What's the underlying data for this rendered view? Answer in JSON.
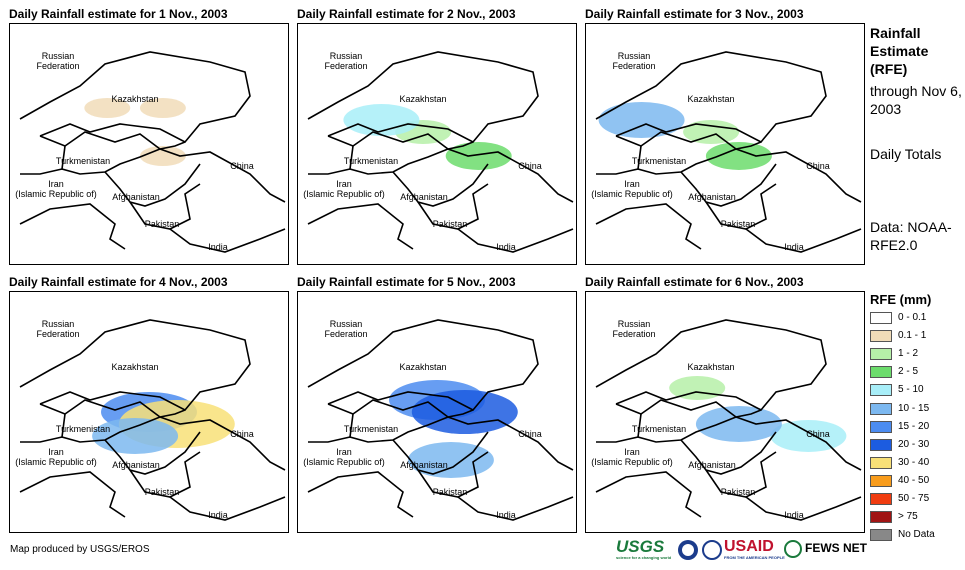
{
  "panels": [
    {
      "title": "Daily Rainfall estimate for 1 Nov., 2003",
      "rain": [
        [
          0.55,
          0.55,
          1
        ],
        [
          0.35,
          0.35,
          1
        ],
        [
          0.55,
          0.35,
          1
        ]
      ]
    },
    {
      "title": "Daily Rainfall estimate for 2 Nov., 2003",
      "rain": [
        [
          0.45,
          0.45,
          2
        ],
        [
          0.65,
          0.55,
          3
        ],
        [
          0.3,
          0.4,
          4
        ]
      ]
    },
    {
      "title": "Daily Rainfall estimate for 3 Nov., 2003",
      "rain": [
        [
          0.45,
          0.45,
          2
        ],
        [
          0.55,
          0.55,
          3
        ],
        [
          0.2,
          0.4,
          5
        ]
      ]
    },
    {
      "title": "Daily Rainfall estimate for 4 Nov., 2003",
      "rain": [
        [
          0.5,
          0.5,
          6
        ],
        [
          0.6,
          0.55,
          8
        ],
        [
          0.45,
          0.6,
          5
        ]
      ]
    },
    {
      "title": "Daily Rainfall estimate for 5 Nov., 2003",
      "rain": [
        [
          0.5,
          0.45,
          6
        ],
        [
          0.6,
          0.5,
          7
        ],
        [
          0.55,
          0.7,
          5
        ]
      ]
    },
    {
      "title": "Daily Rainfall estimate for 6 Nov., 2003",
      "rain": [
        [
          0.8,
          0.6,
          4
        ],
        [
          0.55,
          0.55,
          5
        ],
        [
          0.4,
          0.4,
          2
        ]
      ]
    }
  ],
  "map_labels": {
    "russia": "Russian\nFederation",
    "kazakhstan": "Kazakhstan",
    "turkmenistan": "Turkmenistan",
    "china": "China",
    "iran": "Iran\n(Islamic Republic of)",
    "afghanistan": "Afghanistan",
    "pakistan": "Pakistan",
    "india": "India"
  },
  "side_text": {
    "heading": "Rainfall Estimate (RFE)",
    "through": "through Nov 6, 2003",
    "totals": "Daily Totals",
    "data": "Data: NOAA-RFE2.0"
  },
  "legend": {
    "title": "RFE (mm)",
    "items": [
      {
        "label": "0 - 0.1",
        "color": "#ffffff"
      },
      {
        "label": "0.1 - 1",
        "color": "#f1dcb8"
      },
      {
        "label": "1 - 2",
        "color": "#b6f0a8"
      },
      {
        "label": "2 - 5",
        "color": "#6cdc6c"
      },
      {
        "label": "5 - 10",
        "color": "#a8eef8"
      },
      {
        "label": "10 - 15",
        "color": "#7cb8f0"
      },
      {
        "label": "15 - 20",
        "color": "#4c8cf0"
      },
      {
        "label": "20 - 30",
        "color": "#1c5ce0"
      },
      {
        "label": "30 - 40",
        "color": "#f8e078"
      },
      {
        "label": "40 - 50",
        "color": "#f89c1c"
      },
      {
        "label": "50 - 75",
        "color": "#f03c10"
      },
      {
        "label": "> 75",
        "color": "#a01414"
      },
      {
        "label": "No Data",
        "color": "#888888"
      }
    ]
  },
  "credit": "Map produced by USGS/EROS",
  "logos": {
    "usgs": "USGS",
    "usgs_tag": "science for a changing world",
    "usaid": "USAID",
    "usaid_tag": "FROM THE AMERICAN PEOPLE",
    "fews": "FEWS NET"
  }
}
